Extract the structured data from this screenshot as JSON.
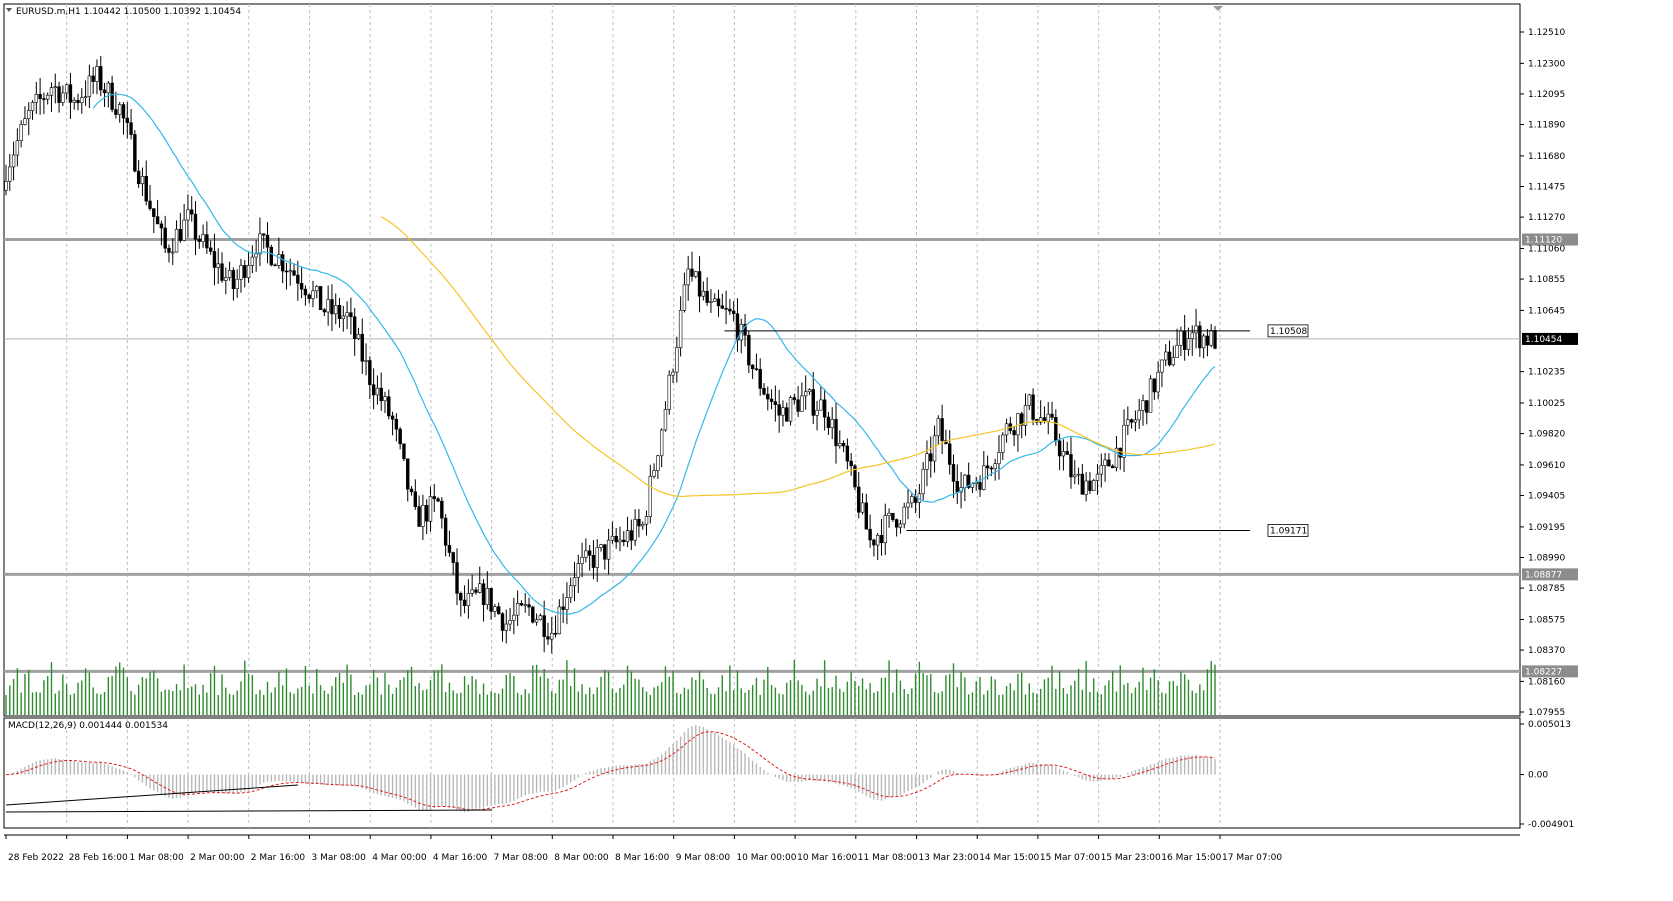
{
  "chart_data": {
    "type": "candlestick",
    "symbol_line": "EURUSD.m,H1  1.10442 1.10500 1.10392 1.10454",
    "price_axis": {
      "ticks": [
        "1.12510",
        "1.12300",
        "1.12095",
        "1.11890",
        "1.11680",
        "1.11475",
        "1.11270",
        "1.11060",
        "1.10855",
        "1.10645",
        "1.10235",
        "1.10025",
        "1.09820",
        "1.09610",
        "1.09405",
        "1.09195",
        "1.08990",
        "1.08785",
        "1.08575",
        "1.08370",
        "1.08160",
        "1.07955"
      ],
      "ylim": [
        1.0795,
        1.1256
      ],
      "current_price": "1.10454"
    },
    "levels": [
      {
        "label": "1.11120",
        "value": 1.1112,
        "color": "#a0a0a0"
      },
      {
        "label": "1.08877",
        "value": 1.08877,
        "color": "#a0a0a0"
      },
      {
        "label": "1.08227",
        "value": 1.08227,
        "color": "#a0a0a0"
      }
    ],
    "annotations": [
      {
        "label": "1.10508",
        "value": 1.10508,
        "from_date": "10 Mar 00:00",
        "to_date": "17 Mar 07:00"
      },
      {
        "label": "1.09171",
        "value": 1.09171,
        "from_date": "13 Mar 23:00",
        "to_date": "17 Mar 07:00"
      }
    ],
    "time_labels": [
      "28 Feb 2022",
      "28 Feb 16:00",
      "1 Mar 08:00",
      "2 Mar 00:00",
      "2 Mar 16:00",
      "3 Mar 08:00",
      "4 Mar 00:00",
      "4 Mar 16:00",
      "7 Mar 08:00",
      "8 Mar 00:00",
      "8 Mar 16:00",
      "9 Mar 08:00",
      "10 Mar 00:00",
      "10 Mar 16:00",
      "11 Mar 08:00",
      "13 Mar 23:00",
      "14 Mar 15:00",
      "15 Mar 07:00",
      "15 Mar 23:00",
      "16 Mar 15:00",
      "17 Mar 07:00"
    ],
    "close_anchors": [
      [
        0,
        1.116
      ],
      [
        6,
        1.1195
      ],
      [
        12,
        1.1215
      ],
      [
        18,
        1.1205
      ],
      [
        24,
        1.122
      ],
      [
        30,
        1.12
      ],
      [
        36,
        1.115
      ],
      [
        42,
        1.1105
      ],
      [
        48,
        1.1125
      ],
      [
        54,
        1.11
      ],
      [
        60,
        1.108
      ],
      [
        66,
        1.111
      ],
      [
        72,
        1.11
      ],
      [
        78,
        1.1085
      ],
      [
        84,
        1.1065
      ],
      [
        90,
        1.106
      ],
      [
        96,
        1.102
      ],
      [
        102,
        1.099
      ],
      [
        108,
        1.0925
      ],
      [
        114,
        1.0935
      ],
      [
        120,
        1.0865
      ],
      [
        126,
        1.0875
      ],
      [
        132,
        1.0855
      ],
      [
        138,
        1.0865
      ],
      [
        144,
        1.085
      ],
      [
        150,
        1.089
      ],
      [
        156,
        1.09
      ],
      [
        162,
        1.091
      ],
      [
        168,
        1.092
      ],
      [
        174,
        1.1
      ],
      [
        180,
        1.109
      ],
      [
        186,
        1.1065
      ],
      [
        192,
        1.106
      ],
      [
        198,
        1.102
      ],
      [
        204,
        1.0995
      ],
      [
        210,
        1.1005
      ],
      [
        216,
        1.1
      ],
      [
        222,
        1.096
      ],
      [
        228,
        1.091
      ],
      [
        234,
        1.0925
      ],
      [
        240,
        1.0935
      ],
      [
        246,
        1.0985
      ],
      [
        252,
        1.0945
      ],
      [
        258,
        1.0955
      ],
      [
        264,
        1.0985
      ],
      [
        270,
        1.1
      ],
      [
        276,
        1.0985
      ],
      [
        282,
        1.095
      ],
      [
        288,
        1.095
      ],
      [
        294,
        1.0975
      ],
      [
        300,
        1.1
      ],
      [
        306,
        1.103
      ],
      [
        312,
        1.105
      ],
      [
        318,
        1.1045
      ]
    ],
    "volume_label": "Tick volume",
    "macd": {
      "label": "MACD(12,26,9) 0.001444 0.001534",
      "ticks": [
        "0.005013",
        "0.00",
        "-0.004901"
      ],
      "ylim": [
        -0.0049,
        0.005
      ]
    },
    "moving_averages": [
      {
        "color": "#35b8e8"
      },
      {
        "color": "#f5c42b"
      }
    ],
    "colors": {
      "candle": "#000000",
      "volume": "#2e8b2e",
      "macd_hist": "#b8b8b8",
      "signal": "#e02020",
      "grid": "#c0c0c0",
      "axis": "#000000"
    }
  }
}
